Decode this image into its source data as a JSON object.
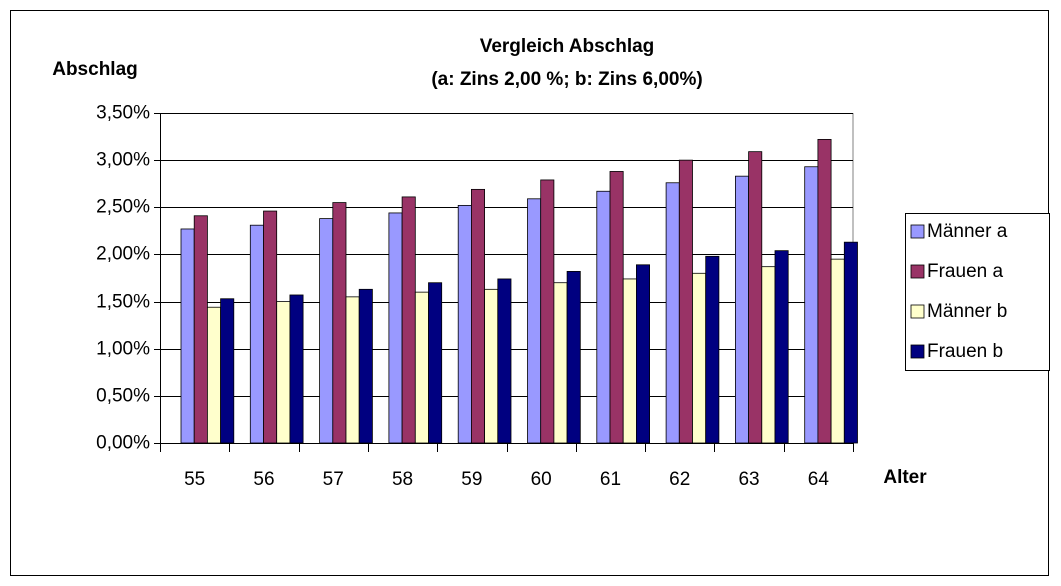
{
  "chart_data": {
    "type": "bar",
    "title": "Vergleich Abschlag",
    "subtitle": "(a: Zins 2,00 %; b: Zins 6,00%)",
    "y_label": "Abschlag",
    "x_label": "Alter",
    "categories": [
      "55",
      "56",
      "57",
      "58",
      "59",
      "60",
      "61",
      "62",
      "63",
      "64"
    ],
    "series": [
      {
        "name": "Männer a",
        "color": "#9999ff",
        "values": [
          2.27,
          2.31,
          2.38,
          2.44,
          2.52,
          2.59,
          2.67,
          2.76,
          2.83,
          2.93
        ]
      },
      {
        "name": "Frauen a",
        "color": "#993366",
        "values": [
          2.41,
          2.46,
          2.55,
          2.61,
          2.69,
          2.79,
          2.88,
          3.0,
          3.09,
          3.22
        ]
      },
      {
        "name": "Männer b",
        "color": "#ffffcc",
        "values": [
          1.44,
          1.5,
          1.55,
          1.6,
          1.63,
          1.7,
          1.74,
          1.8,
          1.87,
          1.95
        ]
      },
      {
        "name": "Frauen b",
        "color": "#000080",
        "values": [
          1.53,
          1.57,
          1.63,
          1.7,
          1.74,
          1.82,
          1.89,
          1.98,
          2.04,
          2.13
        ]
      }
    ],
    "ylim": [
      0,
      3.5
    ],
    "yticks": [
      {
        "value": 0,
        "label": "0,00%"
      },
      {
        "value": 0.5,
        "label": "0,50%"
      },
      {
        "value": 1,
        "label": "1,00%"
      },
      {
        "value": 1.5,
        "label": "1,50%"
      },
      {
        "value": 2,
        "label": "2,00%"
      },
      {
        "value": 2.5,
        "label": "2,50%"
      },
      {
        "value": 3,
        "label": "3,00%"
      },
      {
        "value": 3.5,
        "label": "3,50%"
      }
    ],
    "grid": true,
    "legend": "right"
  }
}
